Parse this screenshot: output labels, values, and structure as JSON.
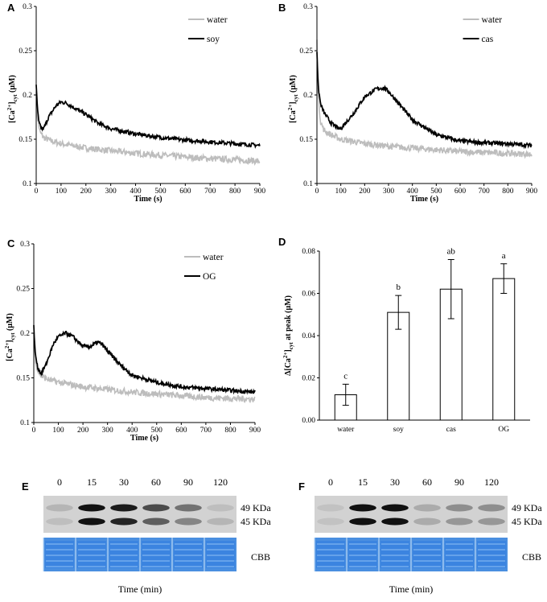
{
  "panel_labels": [
    "A",
    "B",
    "C",
    "D",
    "E",
    "F"
  ],
  "colors": {
    "water": "#bdbdbd",
    "treatment": "#000000",
    "cbb": "#4a8fe0",
    "blot_bg": "#d2d2d2"
  },
  "chart_data": [
    {
      "panel": "A",
      "type": "line",
      "title": "",
      "xlabel": "Time (s)",
      "ylabel": "[Ca2+]cyt (μM)",
      "xlim": [
        0,
        900
      ],
      "ylim": [
        0.1,
        0.3
      ],
      "xticks": [
        "0",
        "100",
        "200",
        "300",
        "400",
        "500",
        "600",
        "700",
        "800",
        "900"
      ],
      "yticks": [
        "0.1",
        "0.15",
        "0.2",
        "0.25",
        "0.3"
      ],
      "legend": [
        "water",
        "soy"
      ],
      "series": [
        {
          "name": "water",
          "color": "#bdbdbd",
          "x": [
            0,
            5,
            15,
            30,
            60,
            100,
            200,
            300,
            400,
            500,
            600,
            700,
            800,
            900
          ],
          "y": [
            0.19,
            0.175,
            0.158,
            0.152,
            0.148,
            0.145,
            0.14,
            0.137,
            0.134,
            0.132,
            0.13,
            0.128,
            0.127,
            0.125
          ]
        },
        {
          "name": "soy",
          "color": "#000000",
          "x": [
            0,
            5,
            10,
            20,
            30,
            50,
            80,
            100,
            120,
            150,
            200,
            250,
            300,
            400,
            500,
            600,
            700,
            800,
            900
          ],
          "y": [
            0.21,
            0.185,
            0.17,
            0.162,
            0.162,
            0.175,
            0.188,
            0.192,
            0.191,
            0.186,
            0.178,
            0.168,
            0.162,
            0.156,
            0.152,
            0.149,
            0.147,
            0.145,
            0.143
          ]
        }
      ]
    },
    {
      "panel": "B",
      "type": "line",
      "title": "",
      "xlabel": "Time (s)",
      "ylabel": "[Ca2+]cyt (μM)",
      "xlim": [
        0,
        900
      ],
      "ylim": [
        0.1,
        0.3
      ],
      "xticks": [
        "0",
        "100",
        "200",
        "300",
        "400",
        "500",
        "600",
        "700",
        "800",
        "900"
      ],
      "yticks": [
        "0.1",
        "0.15",
        "0.2",
        "0.25",
        "0.3"
      ],
      "legend": [
        "water",
        "cas"
      ],
      "series": [
        {
          "name": "water",
          "color": "#bdbdbd",
          "x": [
            0,
            5,
            15,
            30,
            60,
            100,
            200,
            300,
            400,
            500,
            600,
            700,
            800,
            900
          ],
          "y": [
            0.26,
            0.2,
            0.17,
            0.16,
            0.155,
            0.15,
            0.145,
            0.142,
            0.14,
            0.138,
            0.136,
            0.135,
            0.134,
            0.133
          ]
        },
        {
          "name": "cas",
          "color": "#000000",
          "x": [
            0,
            5,
            15,
            30,
            60,
            90,
            100,
            150,
            200,
            250,
            280,
            300,
            350,
            400,
            500,
            600,
            700,
            800,
            900
          ],
          "y": [
            0.25,
            0.21,
            0.19,
            0.18,
            0.168,
            0.162,
            0.162,
            0.178,
            0.198,
            0.207,
            0.208,
            0.204,
            0.188,
            0.172,
            0.155,
            0.148,
            0.146,
            0.145,
            0.143
          ]
        }
      ]
    },
    {
      "panel": "C",
      "type": "line",
      "title": "",
      "xlabel": "Time (s)",
      "ylabel": "[Ca2+]cyt (μM)",
      "xlim": [
        0,
        900
      ],
      "ylim": [
        0.1,
        0.3
      ],
      "xticks": [
        "0",
        "100",
        "200",
        "300",
        "400",
        "500",
        "600",
        "700",
        "800",
        "900"
      ],
      "yticks": [
        "0.1",
        "0.15",
        "0.2",
        "0.25",
        "0.3"
      ],
      "legend": [
        "water",
        "OG"
      ],
      "series": [
        {
          "name": "water",
          "color": "#bdbdbd",
          "x": [
            0,
            5,
            15,
            30,
            60,
            100,
            200,
            300,
            400,
            500,
            600,
            700,
            800,
            900
          ],
          "y": [
            0.2,
            0.175,
            0.158,
            0.152,
            0.148,
            0.145,
            0.14,
            0.137,
            0.134,
            0.132,
            0.13,
            0.128,
            0.127,
            0.126
          ]
        },
        {
          "name": "OG",
          "color": "#000000",
          "x": [
            0,
            5,
            15,
            30,
            50,
            80,
            100,
            130,
            160,
            200,
            230,
            260,
            280,
            300,
            350,
            400,
            500,
            600,
            700,
            800,
            900
          ],
          "y": [
            0.21,
            0.18,
            0.162,
            0.155,
            0.165,
            0.188,
            0.196,
            0.2,
            0.196,
            0.185,
            0.185,
            0.19,
            0.187,
            0.18,
            0.165,
            0.153,
            0.145,
            0.14,
            0.138,
            0.136,
            0.134
          ]
        }
      ]
    },
    {
      "panel": "D",
      "type": "bar",
      "title": "",
      "xlabel": "",
      "ylabel": "Δ[Ca2+]cyt at peak (μM)",
      "ylim": [
        0,
        0.08
      ],
      "yticks": [
        "0.00",
        "0.02",
        "0.04",
        "0.06",
        "0.08"
      ],
      "categories": [
        "water",
        "soy",
        "cas",
        "OG"
      ],
      "values": [
        0.012,
        0.051,
        0.062,
        0.067
      ],
      "errors": [
        0.005,
        0.008,
        0.014,
        0.007
      ],
      "significance": [
        "c",
        "b",
        "ab",
        "a"
      ]
    },
    {
      "panel": "E",
      "type": "table",
      "time_labels": [
        "0",
        "15",
        "30",
        "60",
        "90",
        "120"
      ],
      "band_labels": [
        "49 KDa",
        "45 KDa"
      ],
      "band_intensity_49": [
        0.15,
        1.0,
        0.95,
        0.7,
        0.5,
        0.1
      ],
      "band_intensity_45": [
        0.1,
        1.0,
        0.9,
        0.6,
        0.4,
        0.15
      ],
      "stain_label": "CBB",
      "xlabel": "Time (min)"
    },
    {
      "panel": "F",
      "type": "table",
      "time_labels": [
        "0",
        "15",
        "30",
        "60",
        "90",
        "120"
      ],
      "band_labels": [
        "49 KDa",
        "45 KDa"
      ],
      "band_intensity_49": [
        0.08,
        1.0,
        1.0,
        0.2,
        0.35,
        0.35
      ],
      "band_intensity_45": [
        0.08,
        1.0,
        1.0,
        0.2,
        0.3,
        0.3
      ],
      "stain_label": "CBB",
      "xlabel": "Time (min)"
    }
  ]
}
